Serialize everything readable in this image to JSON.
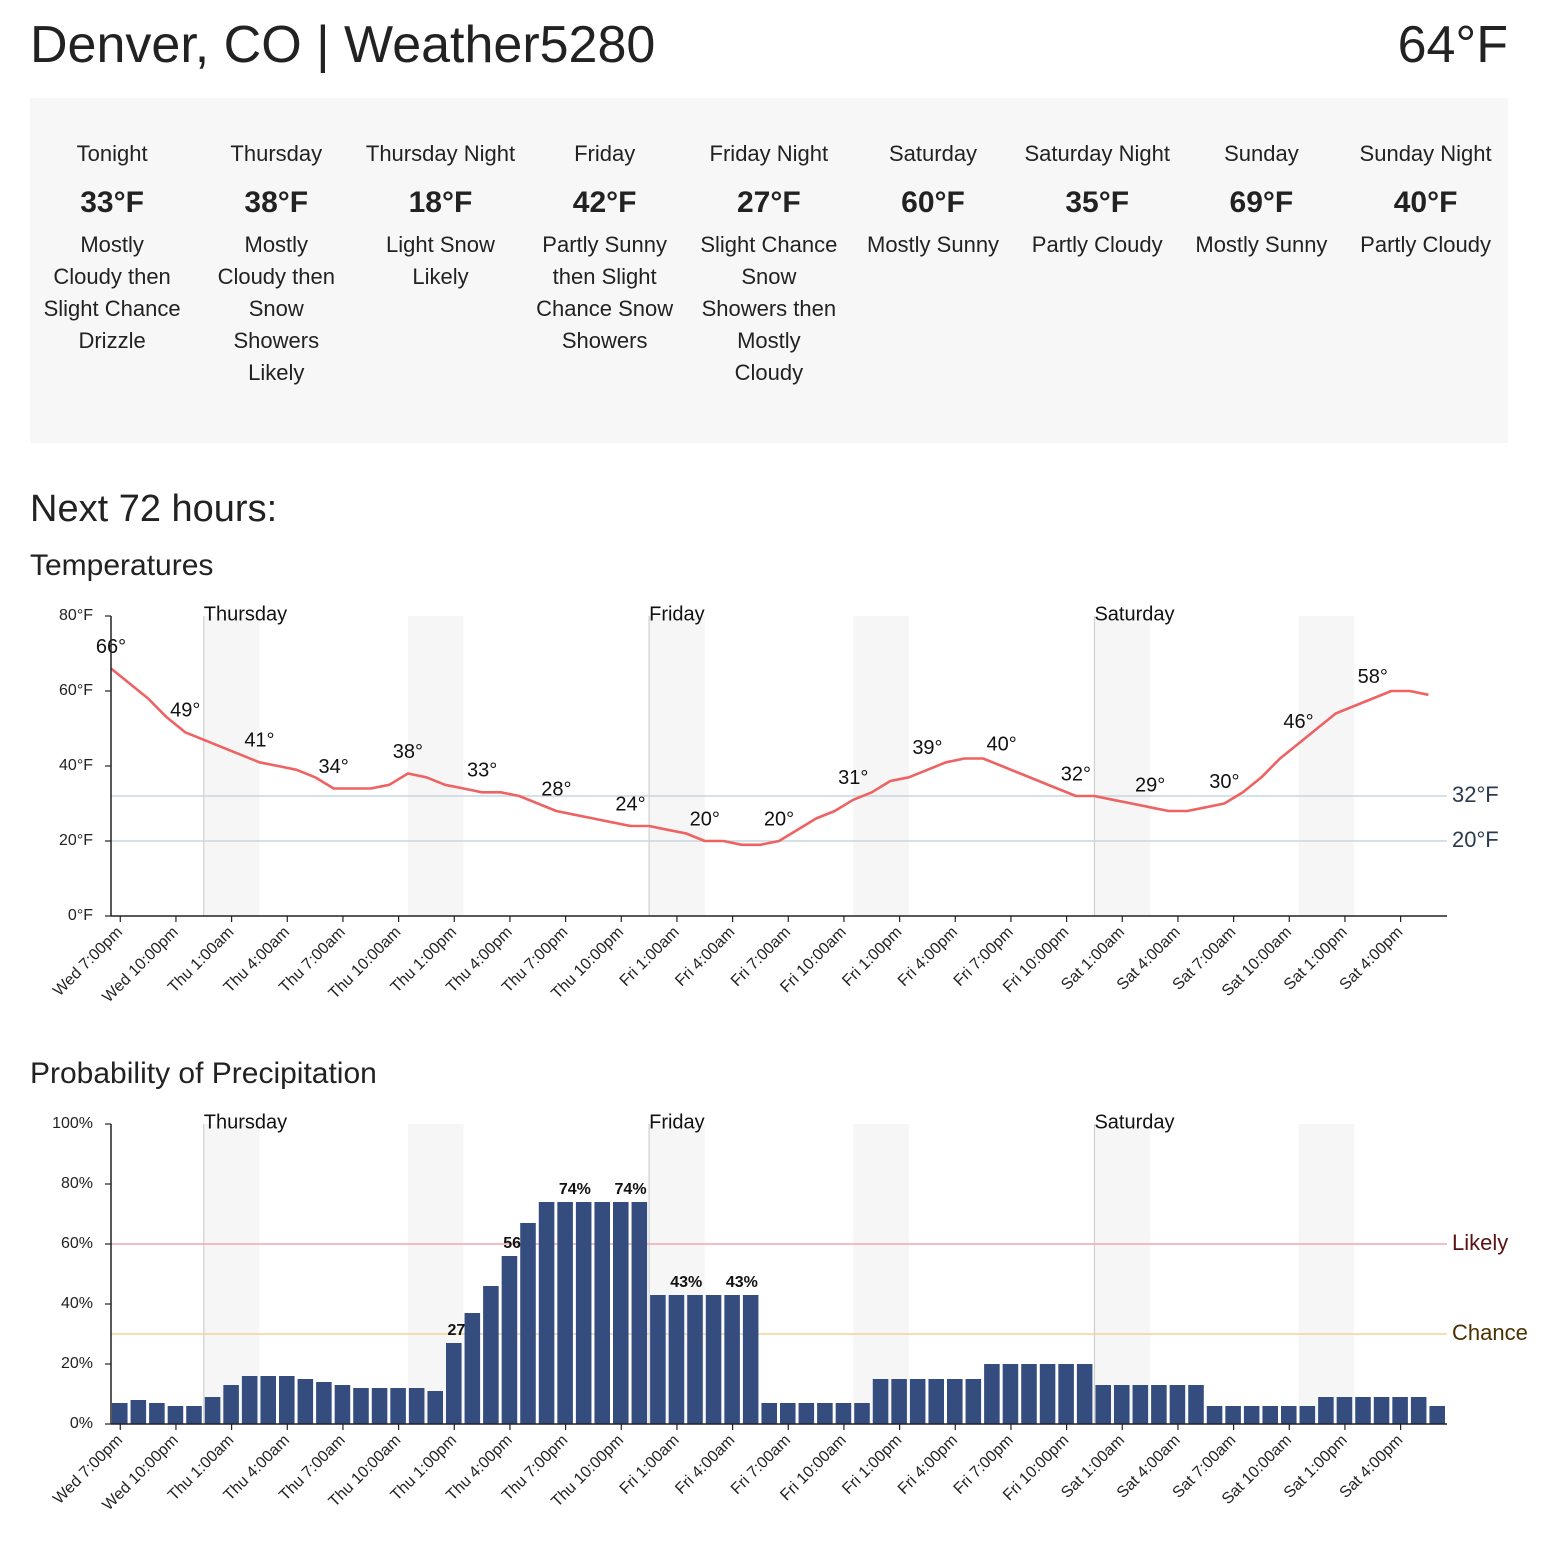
{
  "header": {
    "title": "Denver, CO | Weather5280",
    "current_temp": "64°F"
  },
  "forecast": [
    {
      "name": "Tonight",
      "temp": "33°F",
      "description": "Mostly Cloudy then Slight Chance Drizzle"
    },
    {
      "name": "Thursday",
      "temp": "38°F",
      "description": "Mostly Cloudy then Snow Showers Likely"
    },
    {
      "name": "Thursday Night",
      "temp": "18°F",
      "description": "Light Snow Likely"
    },
    {
      "name": "Friday",
      "temp": "42°F",
      "description": "Partly Sunny then Slight Chance Snow Showers"
    },
    {
      "name": "Friday Night",
      "temp": "27°F",
      "description": "Slight Chance Snow Showers then Mostly Cloudy"
    },
    {
      "name": "Saturday",
      "temp": "60°F",
      "description": "Mostly Sunny"
    },
    {
      "name": "Saturday Night",
      "temp": "35°F",
      "description": "Partly Cloudy"
    },
    {
      "name": "Sunday",
      "temp": "69°F",
      "description": "Mostly Sunny"
    },
    {
      "name": "Sunday Night",
      "temp": "40°F",
      "description": "Partly Cloudy"
    }
  ],
  "section_title": "Next 72 hours:",
  "chart_data": [
    {
      "type": "line",
      "title": "Temperatures",
      "color": "#ef6262",
      "day_labels": [
        "Thursday",
        "Friday",
        "Saturday"
      ],
      "categories": [
        "Wed 7:00pm",
        null,
        null,
        "Wed 10:00pm",
        null,
        null,
        "Thu 1:00am",
        null,
        null,
        "Thu 4:00am",
        null,
        null,
        "Thu 7:00am",
        null,
        null,
        "Thu 10:00am",
        null,
        null,
        "Thu 1:00pm",
        null,
        null,
        "Thu 4:00pm",
        null,
        null,
        "Thu 7:00pm",
        null,
        null,
        "Thu 10:00pm",
        null,
        null,
        "Fri 1:00am",
        null,
        null,
        "Fri 4:00am",
        null,
        null,
        "Fri 7:00am",
        null,
        null,
        "Fri 10:00am",
        null,
        null,
        "Fri 1:00pm",
        null,
        null,
        "Fri 4:00pm",
        null,
        null,
        "Fri 7:00pm",
        null,
        null,
        "Fri 10:00pm",
        null,
        null,
        "Sat 1:00am",
        null,
        null,
        "Sat 4:00am",
        null,
        null,
        "Sat 7:00am",
        null,
        null,
        "Sat 10:00am",
        null,
        null,
        "Sat 1:00pm",
        null,
        null,
        "Sat 4:00pm",
        null,
        null
      ],
      "values": [
        66,
        62,
        58,
        53,
        49,
        47,
        45,
        43,
        41,
        40,
        39,
        37,
        34,
        34,
        34,
        35,
        38,
        37,
        35,
        34,
        33,
        33,
        32,
        30,
        28,
        27,
        26,
        25,
        24,
        24,
        23,
        22,
        20,
        20,
        19,
        19,
        20,
        23,
        26,
        28,
        31,
        33,
        36,
        37,
        39,
        41,
        42,
        42,
        40,
        38,
        36,
        34,
        32,
        32,
        31,
        30,
        29,
        28,
        28,
        29,
        30,
        33,
        37,
        42,
        46,
        50,
        54,
        56,
        58,
        60,
        60,
        59
      ],
      "value_labels": [
        "66°",
        null,
        null,
        null,
        "49°",
        null,
        null,
        null,
        "41°",
        null,
        null,
        null,
        "34°",
        null,
        null,
        null,
        "38°",
        null,
        null,
        null,
        "33°",
        null,
        null,
        null,
        "28°",
        null,
        null,
        null,
        "24°",
        null,
        null,
        null,
        "20°",
        null,
        null,
        null,
        "20°",
        null,
        null,
        null,
        "31°",
        null,
        null,
        null,
        "39°",
        null,
        null,
        null,
        "40°",
        null,
        null,
        null,
        "32°",
        null,
        null,
        null,
        "29°",
        null,
        null,
        null,
        "30°",
        null,
        null,
        null,
        "46°",
        null,
        null,
        null,
        "58°",
        null,
        null,
        null
      ],
      "ylim": [
        0,
        80
      ],
      "yticks": [
        {
          "value": 0,
          "label": "0°F"
        },
        {
          "value": 20,
          "label": "20°F"
        },
        {
          "value": 40,
          "label": "40°F"
        },
        {
          "value": 60,
          "label": "60°F"
        },
        {
          "value": 80,
          "label": "80°F"
        }
      ],
      "reference_lines": [
        {
          "value": 32,
          "label": "32°F",
          "color": "#c9d5e0",
          "label_color": "#2b3a4e"
        },
        {
          "value": 20,
          "label": "20°F",
          "color": "#c9d5e0",
          "label_color": "#2b3a4e"
        }
      ]
    },
    {
      "type": "bar",
      "title": "Probability of Precipitation",
      "color": "#344d7e",
      "day_labels": [
        "Thursday",
        "Friday",
        "Saturday"
      ],
      "categories": [
        "Wed 7:00pm",
        null,
        null,
        "Wed 10:00pm",
        null,
        null,
        "Thu 1:00am",
        null,
        null,
        "Thu 4:00am",
        null,
        null,
        "Thu 7:00am",
        null,
        null,
        "Thu 10:00am",
        null,
        null,
        "Thu 1:00pm",
        null,
        null,
        "Thu 4:00pm",
        null,
        null,
        "Thu 7:00pm",
        null,
        null,
        "Thu 10:00pm",
        null,
        null,
        "Fri 1:00am",
        null,
        null,
        "Fri 4:00am",
        null,
        null,
        "Fri 7:00am",
        null,
        null,
        "Fri 10:00am",
        null,
        null,
        "Fri 1:00pm",
        null,
        null,
        "Fri 4:00pm",
        null,
        null,
        "Fri 7:00pm",
        null,
        null,
        "Fri 10:00pm",
        null,
        null,
        "Sat 1:00am",
        null,
        null,
        "Sat 4:00am",
        null,
        null,
        "Sat 7:00am",
        null,
        null,
        "Sat 10:00am",
        null,
        null,
        "Sat 1:00pm",
        null,
        null,
        "Sat 4:00pm",
        null,
        null
      ],
      "values": [
        7,
        8,
        7,
        6,
        6,
        9,
        13,
        16,
        16,
        16,
        15,
        14,
        13,
        12,
        12,
        12,
        12,
        11,
        27,
        37,
        46,
        56,
        67,
        74,
        74,
        74,
        74,
        74,
        74,
        43,
        43,
        43,
        43,
        43,
        43,
        7,
        7,
        7,
        7,
        7,
        7,
        15,
        15,
        15,
        15,
        15,
        15,
        20,
        20,
        20,
        20,
        20,
        20,
        13,
        13,
        13,
        13,
        13,
        13,
        6,
        6,
        6,
        6,
        6,
        6,
        9,
        9,
        9,
        9,
        9,
        9,
        6
      ],
      "value_labels": [
        null,
        null,
        null,
        null,
        null,
        null,
        null,
        null,
        null,
        null,
        null,
        null,
        null,
        null,
        null,
        null,
        null,
        null,
        "27%",
        null,
        null,
        "56%",
        null,
        null,
        "74%",
        null,
        null,
        "74%",
        null,
        null,
        "43%",
        null,
        null,
        "43%",
        null,
        null,
        null,
        null,
        null,
        null,
        null,
        null,
        null,
        null,
        null,
        null,
        null,
        null,
        null,
        null,
        null,
        null,
        null,
        null,
        null,
        null,
        null,
        null,
        null,
        null,
        null,
        null,
        null,
        null,
        null,
        null,
        null,
        null,
        null,
        null,
        null,
        null
      ],
      "ylim": [
        0,
        100
      ],
      "yticks": [
        {
          "value": 0,
          "label": "0%"
        },
        {
          "value": 20,
          "label": "20%"
        },
        {
          "value": 40,
          "label": "40%"
        },
        {
          "value": 60,
          "label": "60%"
        },
        {
          "value": 80,
          "label": "80%"
        },
        {
          "value": 100,
          "label": "100%"
        }
      ],
      "reference_lines": [
        {
          "value": 60,
          "label": "Likely",
          "color": "#f2a7ae",
          "label_color": "#5a1212"
        },
        {
          "value": 30,
          "label": "Chance",
          "color": "#f6d09a",
          "label_color": "#4a3200"
        }
      ]
    }
  ]
}
